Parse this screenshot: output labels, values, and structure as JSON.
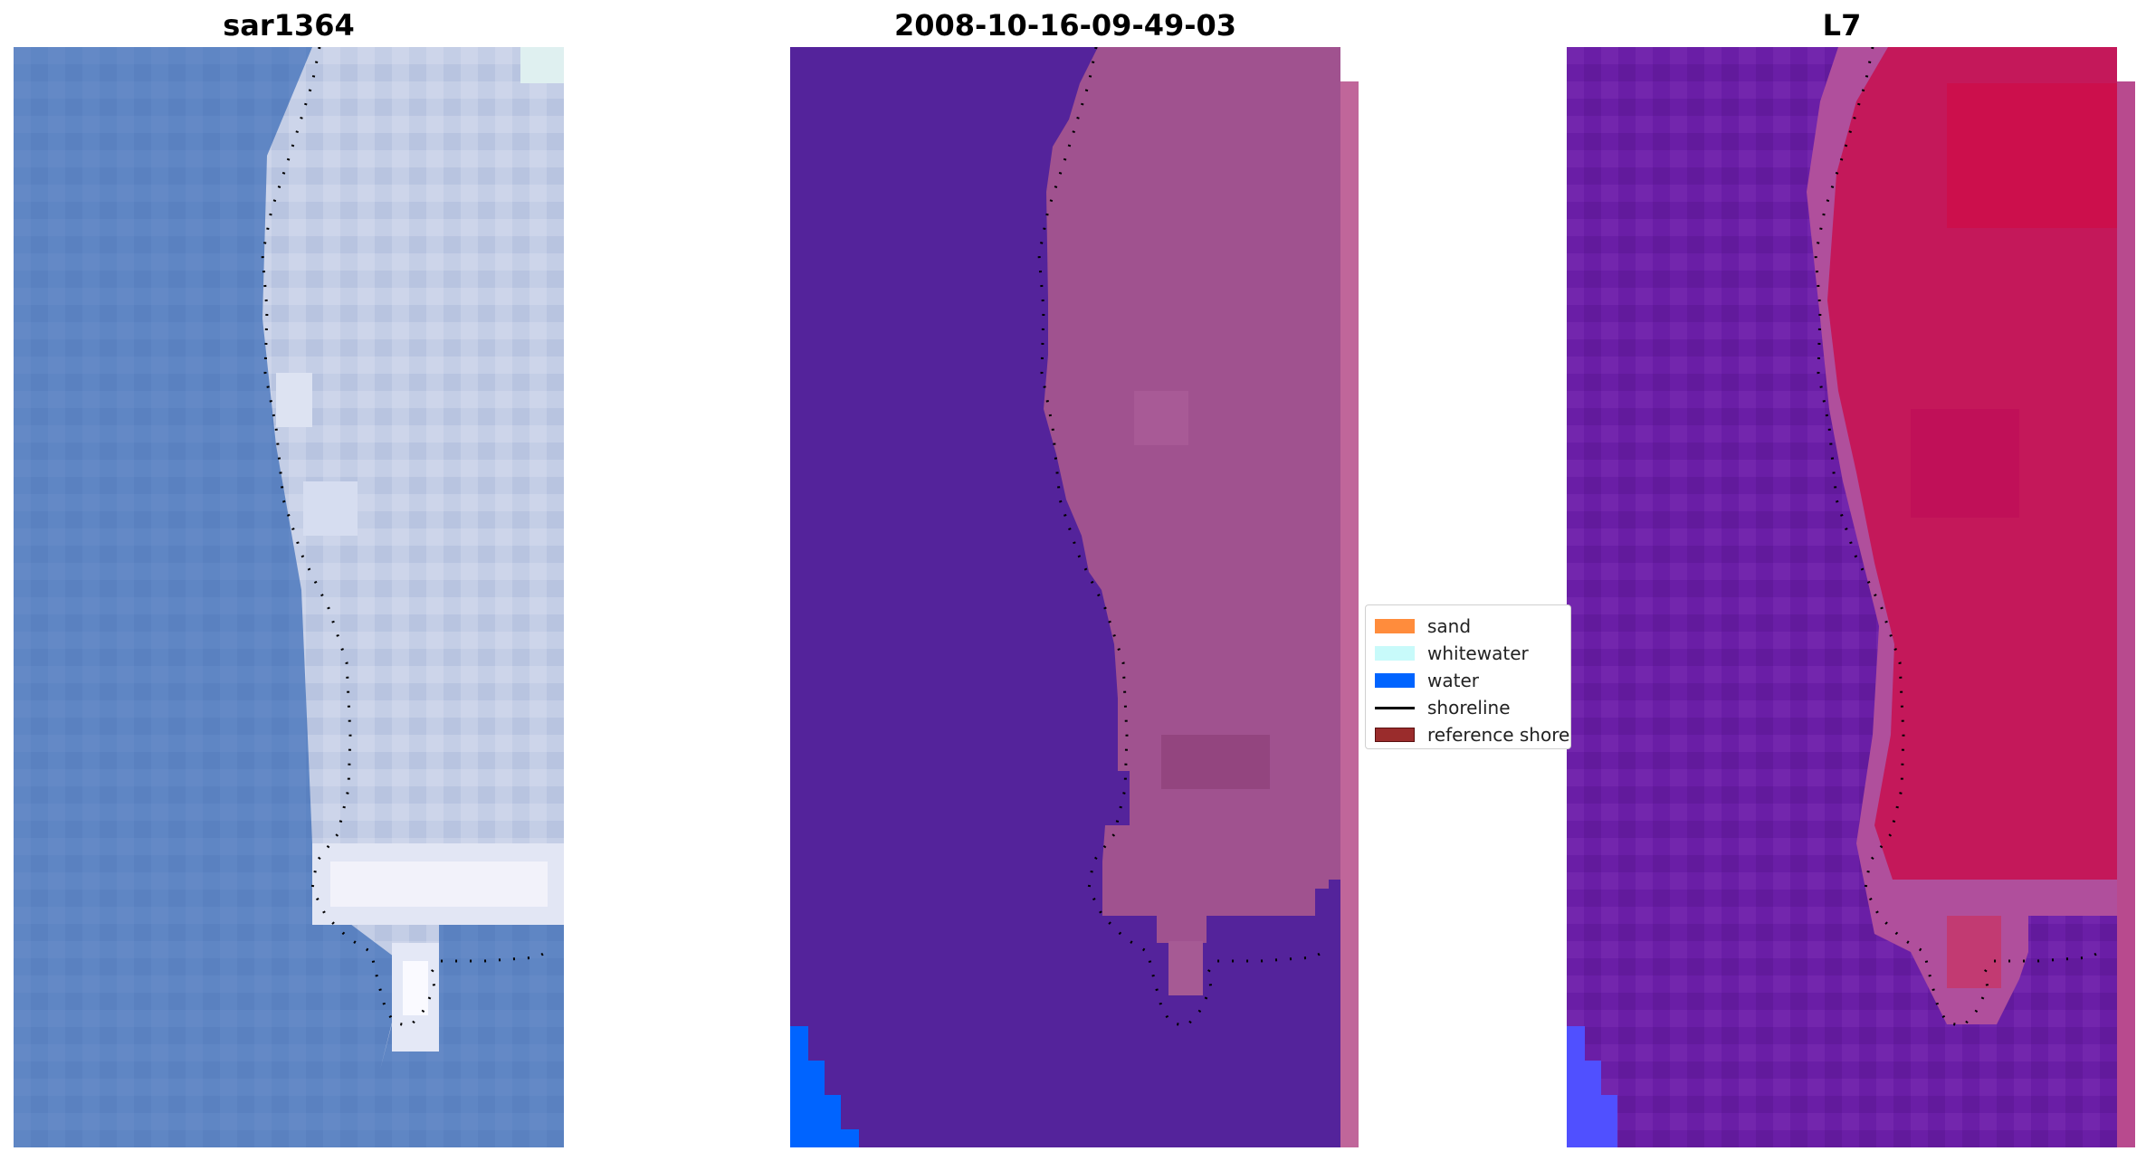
{
  "panels": {
    "left": {
      "title": "sar1364"
    },
    "middle": {
      "title": "2008-10-16-09-49-03"
    },
    "right": {
      "title": "L7"
    }
  },
  "legend": {
    "items": [
      {
        "label": "sand",
        "kind": "patch",
        "color": "#ff8c3c"
      },
      {
        "label": "whitewater",
        "kind": "patch",
        "color": "#c8fafa"
      },
      {
        "label": "water",
        "kind": "patch",
        "color": "#0064ff"
      },
      {
        "label": "shoreline",
        "kind": "line",
        "color": "#000000"
      },
      {
        "label": "reference shoreline",
        "kind": "patch",
        "color": "#9a2c2c"
      }
    ]
  },
  "colors": {
    "sar_water": "#5f86c4",
    "sar_land": "#c6d0e6",
    "class_water_background": "#54239b",
    "class_land_overlay": "#a0528f",
    "class_blue_corner": "#0064ff",
    "l7_water": "#6a1ea6",
    "l7_land": "#c4185a",
    "shoreline": "#000000"
  }
}
